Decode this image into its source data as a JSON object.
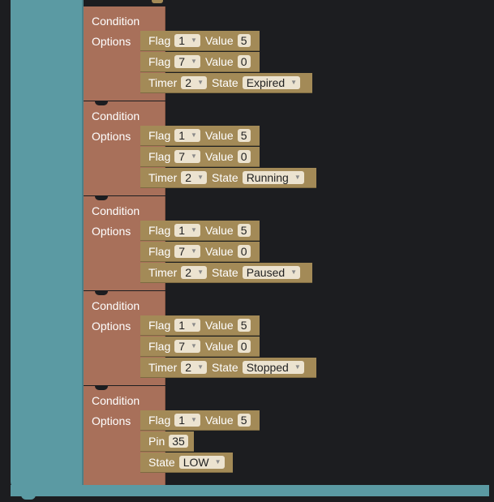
{
  "conditions": [
    {
      "condition_label": "Condition",
      "options_label": "Options",
      "rows": [
        {
          "flag_label": "Flag",
          "flag_value": "1",
          "value_label": "Value",
          "value": "5"
        },
        {
          "flag_label": "Flag",
          "flag_value": "7",
          "value_label": "Value",
          "value": "0"
        },
        {
          "timer_label": "Timer",
          "timer_value": "2",
          "state_label": "State",
          "state_value": "Expired"
        }
      ]
    },
    {
      "condition_label": "Condition",
      "options_label": "Options",
      "rows": [
        {
          "flag_label": "Flag",
          "flag_value": "1",
          "value_label": "Value",
          "value": "5"
        },
        {
          "flag_label": "Flag",
          "flag_value": "7",
          "value_label": "Value",
          "value": "0"
        },
        {
          "timer_label": "Timer",
          "timer_value": "2",
          "state_label": "State",
          "state_value": "Running"
        }
      ]
    },
    {
      "condition_label": "Condition",
      "options_label": "Options",
      "rows": [
        {
          "flag_label": "Flag",
          "flag_value": "1",
          "value_label": "Value",
          "value": "5"
        },
        {
          "flag_label": "Flag",
          "flag_value": "7",
          "value_label": "Value",
          "value": "0"
        },
        {
          "timer_label": "Timer",
          "timer_value": "2",
          "state_label": "State",
          "state_value": "Paused"
        }
      ]
    },
    {
      "condition_label": "Condition",
      "options_label": "Options",
      "rows": [
        {
          "flag_label": "Flag",
          "flag_value": "1",
          "value_label": "Value",
          "value": "5"
        },
        {
          "flag_label": "Flag",
          "flag_value": "7",
          "value_label": "Value",
          "value": "0"
        },
        {
          "timer_label": "Timer",
          "timer_value": "2",
          "state_label": "State",
          "state_value": "Stopped"
        }
      ]
    },
    {
      "condition_label": "Condition",
      "options_label": "Options",
      "rows": [
        {
          "flag_label": "Flag",
          "flag_value": "1",
          "value_label": "Value",
          "value": "5"
        },
        {
          "pin_label": "Pin",
          "pin_value": "35"
        },
        {
          "state_label": "State",
          "state_value": "LOW"
        }
      ]
    }
  ],
  "colors": {
    "workspace": "#1c1d20",
    "teal_block": "#5b9aa3",
    "condition_block": "#a8705a",
    "option_block": "#a38a57",
    "field": "#ece3d0"
  },
  "icons": {
    "dropdown": "dropdown-arrow-icon"
  }
}
